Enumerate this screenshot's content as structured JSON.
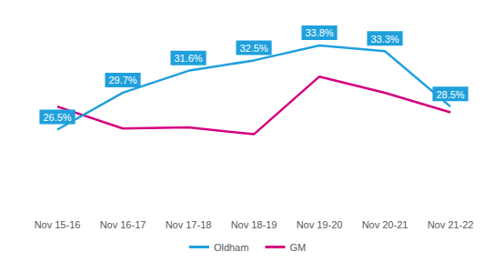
{
  "chart_data": {
    "type": "line",
    "categories": [
      "Nov 15-16",
      "Nov 16-17",
      "Nov 17-18",
      "Nov 18-19",
      "Nov 19-20",
      "Nov 20-21",
      "Nov 21-22"
    ],
    "series": [
      {
        "name": "Oldham",
        "color": "#1fa0dc",
        "values": [
          26.5,
          29.7,
          31.6,
          32.5,
          33.8,
          33.3,
          28.5
        ],
        "value_labels": [
          "26.5%",
          "29.7%",
          "31.6%",
          "32.5%",
          "33.8%",
          "33.3%",
          "28.5%"
        ],
        "data_labels": true
      },
      {
        "name": "GM",
        "color": "#d4007f",
        "values": [
          28.5,
          26.6,
          26.7,
          26.1,
          31.1,
          29.7,
          28.0
        ]
      }
    ],
    "ylim": [
      20,
      36
    ],
    "yticks": [
      20,
      24,
      28,
      32,
      36
    ],
    "grid": false,
    "legend": "bottom",
    "tick_labels": "x"
  }
}
